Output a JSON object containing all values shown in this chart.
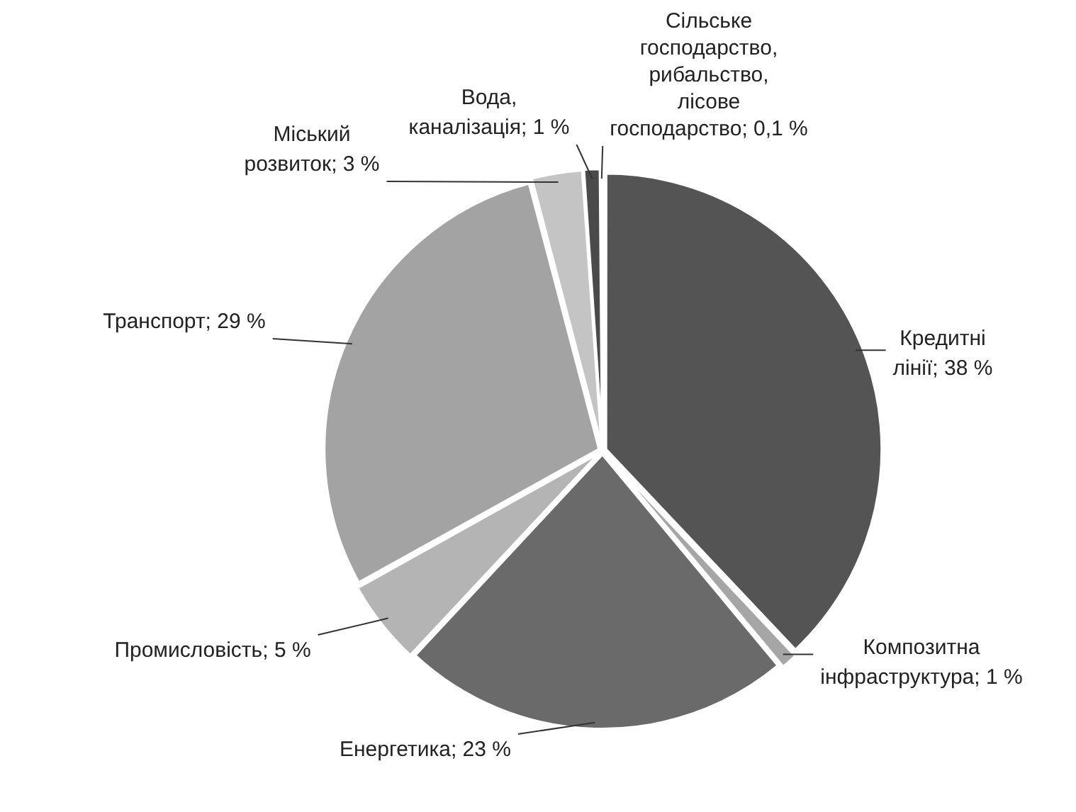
{
  "chart_data": {
    "type": "pie",
    "categories": [
      "Кредитні лінії",
      "Композитна інфраструктура",
      "Енергетика",
      "Промисловість",
      "Транспорт",
      "Міський розвиток",
      "Вода, каналізація",
      "Сільське господарство, рибальство, лісове господарство"
    ],
    "values": [
      38,
      1,
      23,
      5,
      29,
      3,
      1,
      0.1
    ],
    "value_labels": [
      "38 %",
      "1 %",
      "23 %",
      "5 %",
      "29 %",
      "3 %",
      "1 %",
      "0,1 %"
    ],
    "colors": [
      "#545454",
      "#a6a6a6",
      "#6a6a6a",
      "#b4b4b4",
      "#a3a3a3",
      "#c4c4c4",
      "#4a4a4a",
      "#8c8c8c"
    ],
    "legend": false
  }
}
